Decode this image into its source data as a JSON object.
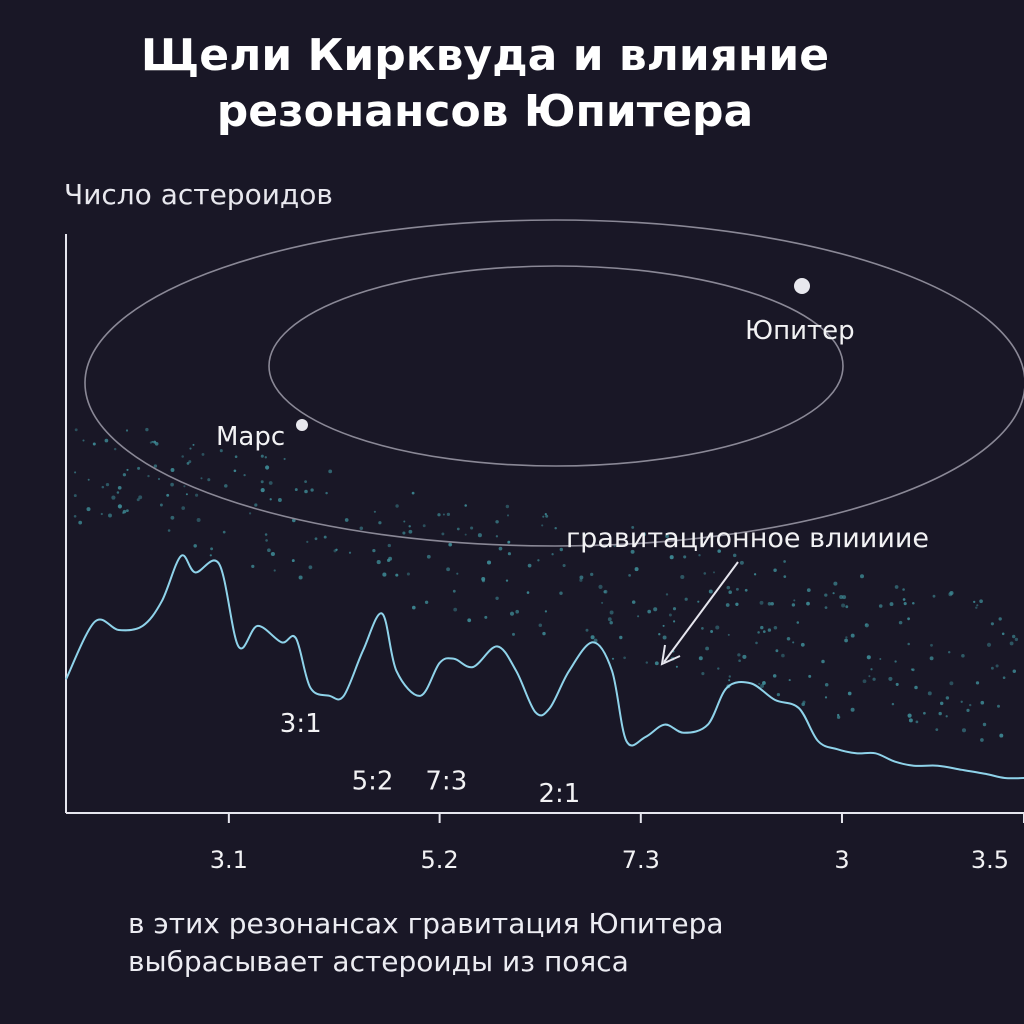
{
  "title": {
    "line1": "Щели Кирквуда и влияние",
    "line2": "резонансов Юпитера"
  },
  "caption": {
    "line1": "в этих резонансах гравитация Юпитера",
    "line2": "выбрасывает астероиды из пояса"
  },
  "colors": {
    "background": "#191726",
    "curve": "#8fd3ea",
    "orbit": "#8a8896",
    "axis": "#e6e6ee",
    "dots": "#3f8f9a",
    "planet": "#e8e8ee"
  },
  "orbits": {
    "mars_label": "Марс",
    "jupiter_label": "Юпитер"
  },
  "annotation": {
    "text": "гравитационное влиииие"
  },
  "chart_data": {
    "type": "line",
    "xlabel": "",
    "ylabel": "Число астероидов",
    "x_tick_labels": [
      "3.1",
      "5.2",
      "7.3",
      "3",
      "3.5"
    ],
    "x_tick_positions": [
      0.17,
      0.39,
      0.6,
      0.81,
      1.0
    ],
    "ylim": [
      0,
      100
    ],
    "series": [
      {
        "x": [
          0,
          0.03,
          0.055,
          0.08,
          0.1,
          0.12,
          0.135,
          0.16,
          0.18,
          0.2,
          0.225,
          0.24,
          0.255,
          0.275,
          0.29,
          0.31,
          0.33,
          0.345,
          0.37,
          0.39,
          0.405,
          0.425,
          0.45,
          0.47,
          0.49,
          0.505,
          0.525,
          0.55,
          0.57,
          0.585,
          0.605,
          0.625,
          0.645,
          0.67,
          0.69,
          0.715,
          0.74,
          0.765,
          0.785,
          0.805,
          0.825,
          0.845,
          0.865,
          0.885,
          0.91,
          0.935,
          0.96,
          0.98,
          1.0
        ],
        "values": [
          24,
          38,
          36,
          37,
          43,
          54,
          50,
          52,
          32,
          37,
          33,
          34,
          22,
          20,
          20,
          31,
          40,
          26,
          20,
          28,
          29,
          27,
          32,
          26,
          16,
          17,
          26,
          33,
          26,
          9,
          10,
          13,
          11,
          13,
          22,
          23,
          19,
          17,
          9,
          7,
          6,
          6,
          4,
          3,
          3,
          2,
          1,
          0,
          0
        ]
      }
    ],
    "resonance_labels": [
      {
        "label": "3:1",
        "x": 0.245,
        "y": 19
      },
      {
        "label": "5:2",
        "x": 0.32,
        "y": 5
      },
      {
        "label": "7:3",
        "x": 0.397,
        "y": 5
      },
      {
        "label": "2:1",
        "x": 0.515,
        "y": 2
      }
    ],
    "grid": false
  }
}
